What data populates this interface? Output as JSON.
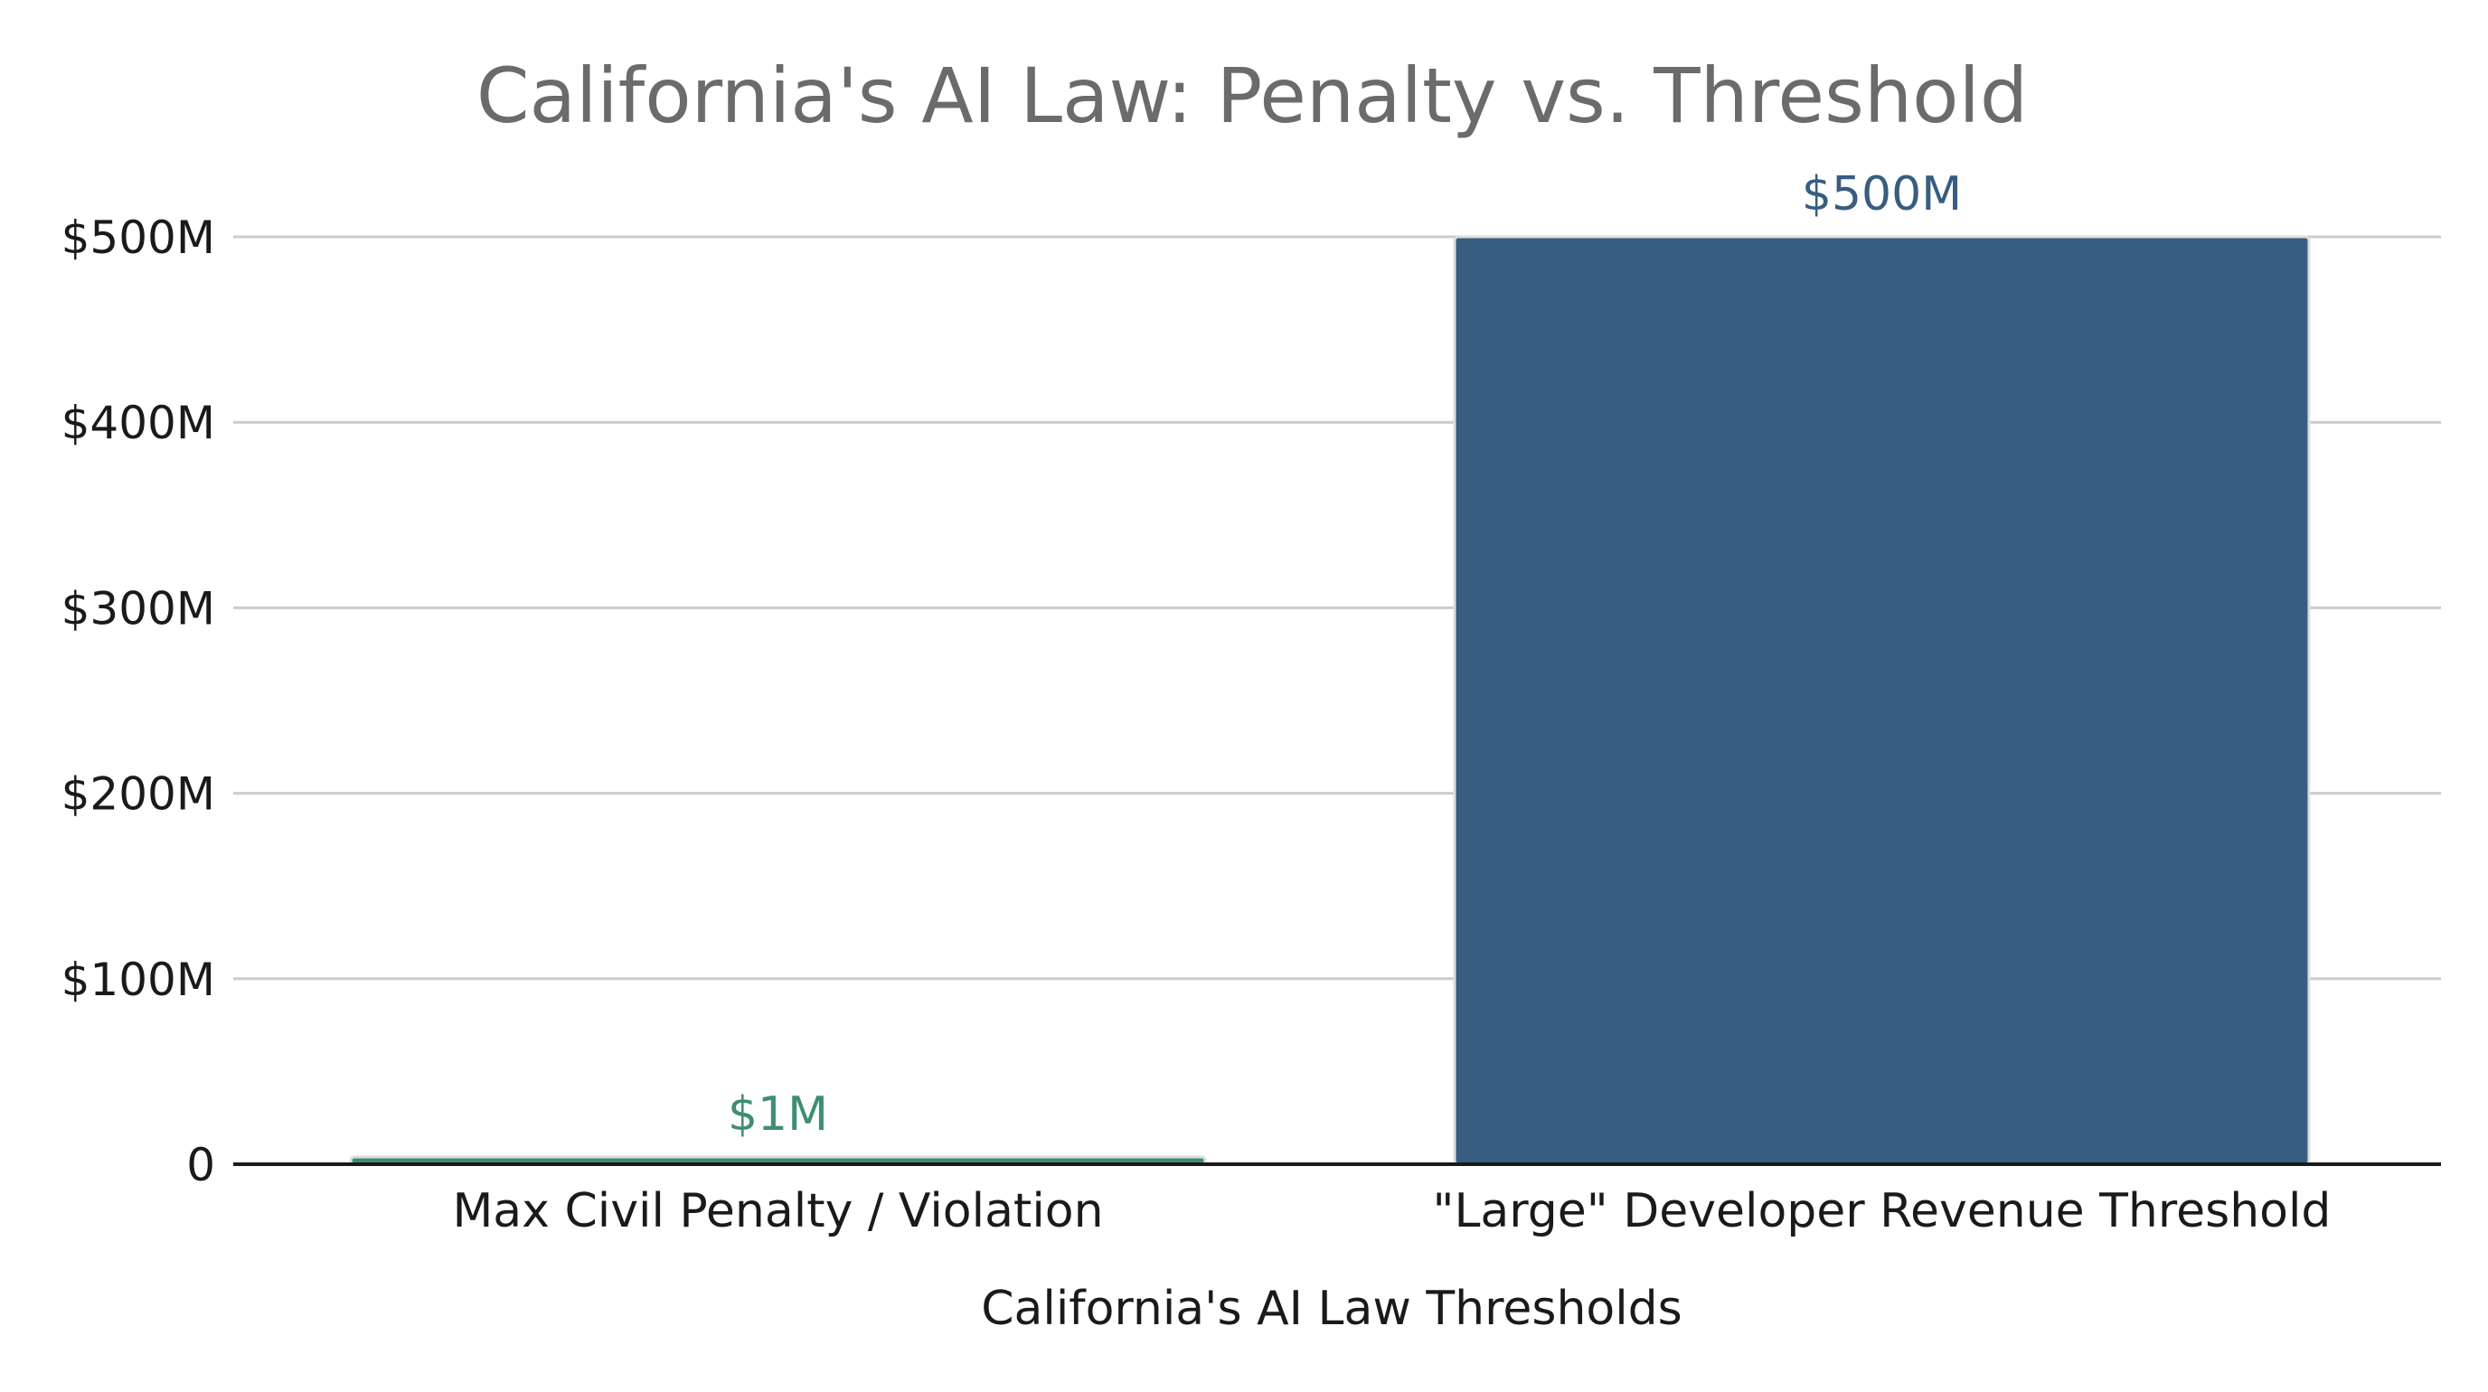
{
  "chart_data": {
    "type": "bar",
    "title": "California's AI Law: Penalty vs. Threshold",
    "xlabel": "California's AI Law Thresholds",
    "ylabel": "",
    "categories": [
      "Max Civil Penalty / Violation",
      "\"Large\" Developer Revenue Threshold"
    ],
    "values": [
      1,
      500
    ],
    "value_unit": "$M",
    "data_labels": [
      "$1M",
      "$500M"
    ],
    "ylim": [
      0,
      500
    ],
    "yticks": [
      0,
      100,
      200,
      300,
      400,
      500
    ],
    "ytick_labels": [
      "0",
      "$100M",
      "$200M",
      "$300M",
      "$400M",
      "$500M"
    ],
    "colors": [
      "#3e8e74",
      "#375d81"
    ],
    "grid": true,
    "legend": "none"
  }
}
